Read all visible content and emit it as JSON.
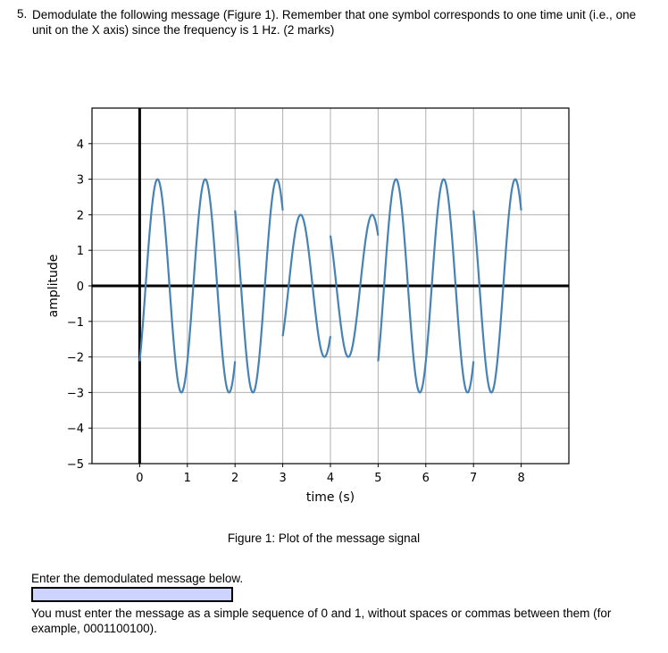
{
  "question": {
    "number": "5.",
    "text": "Demodulate the following message (Figure 1). Remember that one symbol corresponds to one time unit (i.e., one unit on the X axis) since the frequency is 1 Hz. (2 marks)"
  },
  "figure": {
    "caption": "Figure 1: Plot of the message signal"
  },
  "answer": {
    "label": "Enter the demodulated message below.",
    "value": "",
    "placeholder": "",
    "instruction": "You must enter the message as a simple sequence of 0 and 1, without spaces or commas between them (for example, 0001100100)."
  },
  "chart_data": {
    "type": "line",
    "title": "",
    "xlabel": "time (s)",
    "ylabel": "amplitude",
    "xlim": [
      -1,
      9
    ],
    "ylim": [
      -5,
      5
    ],
    "xticks": [
      0,
      1,
      2,
      3,
      4,
      5,
      6,
      7,
      8
    ],
    "yticks": [
      -5,
      -4,
      -3,
      -2,
      -1,
      0,
      1,
      2,
      3,
      4
    ],
    "ytick_labels": [
      "−5",
      "−4",
      "−3",
      "−2",
      "−1",
      "0",
      "1",
      "2",
      "3",
      "4"
    ],
    "grid": true,
    "axes_lines": {
      "x0": true,
      "y0": true
    },
    "line_color": "#4682b4",
    "signal": {
      "formula": "A * s * sin(2*pi*f*t - pi/4)",
      "frequency_hz": 1,
      "symbol_duration_s": 1,
      "symbols": [
        {
          "t_start": 0,
          "t_end": 1,
          "amplitude": 3,
          "sign": 1
        },
        {
          "t_start": 1,
          "t_end": 2,
          "amplitude": 3,
          "sign": 1
        },
        {
          "t_start": 2,
          "t_end": 3,
          "amplitude": 3,
          "sign": -1
        },
        {
          "t_start": 3,
          "t_end": 4,
          "amplitude": 2,
          "sign": 1
        },
        {
          "t_start": 4,
          "t_end": 5,
          "amplitude": 2,
          "sign": -1
        },
        {
          "t_start": 5,
          "t_end": 6,
          "amplitude": 3,
          "sign": 1
        },
        {
          "t_start": 6,
          "t_end": 7,
          "amplitude": 3,
          "sign": 1
        },
        {
          "t_start": 7,
          "t_end": 8,
          "amplitude": 3,
          "sign": -1
        }
      ]
    }
  }
}
